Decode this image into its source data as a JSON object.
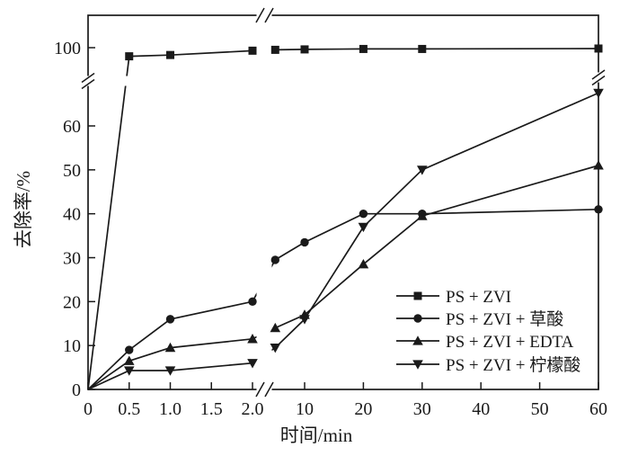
{
  "figure": {
    "background": "#ffffff",
    "ink": "#1a1a1a"
  },
  "chart_data": {
    "type": "line",
    "title": "",
    "xlabel": "时间/min",
    "ylabel": "去除率/%",
    "grid": false,
    "legend_position": "inside-bottom-right",
    "x_axis": {
      "unit": "min",
      "break_between": [
        2.0,
        5
      ],
      "segment_ranges": [
        [
          0,
          2.0
        ],
        [
          5,
          60
        ]
      ]
    },
    "y_axis": {
      "unit": "%",
      "break_between": [
        68,
        93
      ],
      "segment_ranges": [
        [
          0,
          60
        ],
        [
          93,
          100
        ]
      ]
    },
    "x_ticks": [
      {
        "v": 0,
        "label": "0"
      },
      {
        "v": 0.5,
        "label": "0.5"
      },
      {
        "v": 1.0,
        "label": "1.0"
      },
      {
        "v": 1.5,
        "label": "1.5"
      },
      {
        "v": 2.0,
        "label": "2.0"
      },
      {
        "v": 10,
        "label": "10"
      },
      {
        "v": 20,
        "label": "20"
      },
      {
        "v": 30,
        "label": "30"
      },
      {
        "v": 40,
        "label": "40"
      },
      {
        "v": 50,
        "label": "50"
      },
      {
        "v": 60,
        "label": "60"
      }
    ],
    "y_ticks": [
      {
        "v": 0,
        "label": "0"
      },
      {
        "v": 10,
        "label": "10"
      },
      {
        "v": 20,
        "label": "20"
      },
      {
        "v": 30,
        "label": "30"
      },
      {
        "v": 40,
        "label": "40"
      },
      {
        "v": 50,
        "label": "50"
      },
      {
        "v": 60,
        "label": "60"
      },
      {
        "v": 100,
        "label": "100"
      }
    ],
    "series": [
      {
        "name": "PS + ZVI",
        "marker": "square",
        "points": [
          [
            0,
            0
          ],
          [
            0.5,
            98
          ],
          [
            1,
            98.3
          ],
          [
            2,
            99.3
          ],
          [
            5,
            99.5
          ],
          [
            10,
            99.6
          ],
          [
            20,
            99.7
          ],
          [
            30,
            99.7
          ],
          [
            60,
            99.8
          ]
        ]
      },
      {
        "name": "PS + ZVI + 草酸",
        "marker": "circle",
        "points": [
          [
            0,
            0
          ],
          [
            0.5,
            9
          ],
          [
            1,
            16
          ],
          [
            2,
            20
          ],
          [
            5,
            29.5
          ],
          [
            10,
            33.5
          ],
          [
            20,
            40
          ],
          [
            30,
            40
          ],
          [
            60,
            41
          ]
        ]
      },
      {
        "name": "PS + ZVI + EDTA",
        "marker": "triangle-up",
        "points": [
          [
            0,
            0
          ],
          [
            0.5,
            6.5
          ],
          [
            1,
            9.5
          ],
          [
            2,
            11.5
          ],
          [
            5,
            14
          ],
          [
            10,
            17
          ],
          [
            20,
            28.5
          ],
          [
            30,
            39.5
          ],
          [
            60,
            51
          ]
        ]
      },
      {
        "name": "PS + ZVI + 柠檬酸",
        "marker": "triangle-down",
        "points": [
          [
            0,
            0
          ],
          [
            0.5,
            4.3
          ],
          [
            1,
            4.3
          ],
          [
            2,
            6
          ],
          [
            5,
            9.5
          ],
          [
            10,
            16
          ],
          [
            20,
            37
          ],
          [
            30,
            50
          ],
          [
            60,
            67.5
          ]
        ]
      }
    ]
  }
}
